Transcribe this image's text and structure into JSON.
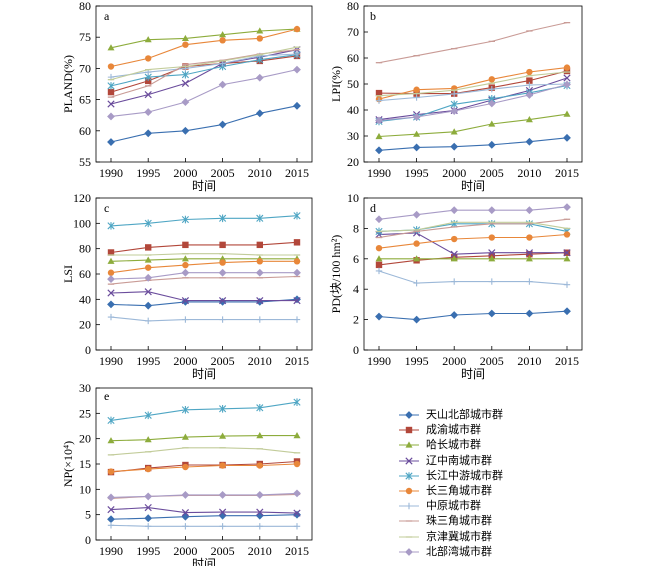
{
  "colors": [
    "#3a6fb0",
    "#b2473a",
    "#8dac3c",
    "#6a4c9c",
    "#4fa6c4",
    "#e8873a",
    "#9cb8d8",
    "#c99b96",
    "#c2cc9a",
    "#a89bc6"
  ],
  "legend": [
    "天山北部城市群",
    "成渝城市群",
    "哈长城市群",
    "辽中南城市群",
    "长江中游城市群",
    "长三角城市群",
    "中原城市群",
    "珠三角城市群",
    "京津冀城市群",
    "北部湾城市群"
  ],
  "markers": [
    "diamond",
    "square",
    "triangle",
    "x",
    "star",
    "circle",
    "plus",
    "dash",
    "dash",
    "diamond"
  ],
  "xlabel": "时间",
  "chart_data": [
    {
      "type": "line",
      "panel": "a",
      "ylabel": "PLAND(%)",
      "xlabel": "时间",
      "x": [
        1990,
        1995,
        2000,
        2005,
        2010,
        2015
      ],
      "ylim": [
        55,
        80
      ],
      "yticks": [
        55,
        60,
        65,
        70,
        75,
        80
      ],
      "series": [
        {
          "name": "天山北部城市群",
          "values": [
            58.2,
            59.6,
            60.0,
            61.0,
            62.8,
            64.0
          ]
        },
        {
          "name": "成渝城市群",
          "values": [
            66.2,
            68.0,
            70.3,
            70.8,
            71.2,
            72.0
          ]
        },
        {
          "name": "哈长城市群",
          "values": [
            73.3,
            74.6,
            74.8,
            75.4,
            76.0,
            76.3
          ]
        },
        {
          "name": "辽中南城市群",
          "values": [
            64.3,
            65.8,
            67.6,
            70.8,
            71.8,
            73.0
          ]
        },
        {
          "name": "长江中游城市群",
          "values": [
            67.2,
            68.6,
            69.0,
            70.3,
            71.4,
            72.2
          ]
        },
        {
          "name": "长三角城市群",
          "values": [
            70.3,
            71.6,
            73.8,
            74.5,
            74.8,
            76.3
          ]
        },
        {
          "name": "中原城市群",
          "values": [
            68.6,
            69.4,
            70.0,
            70.8,
            72.0,
            72.3
          ]
        },
        {
          "name": "珠三角城市群",
          "values": [
            65.4,
            67.2,
            70.6,
            71.3,
            72.3,
            73.0
          ]
        },
        {
          "name": "京津冀城市群",
          "values": [
            68.2,
            69.8,
            70.3,
            71.2,
            72.2,
            73.4
          ]
        },
        {
          "name": "北部湾城市群",
          "values": [
            62.3,
            63.0,
            64.6,
            67.4,
            68.5,
            69.8
          ]
        }
      ]
    },
    {
      "type": "line",
      "panel": "b",
      "ylabel": "LPI(%)",
      "xlabel": "时间",
      "x": [
        1990,
        1995,
        2000,
        2005,
        2010,
        2015
      ],
      "ylim": [
        20,
        80
      ],
      "yticks": [
        20,
        30,
        40,
        50,
        60,
        70,
        80
      ],
      "series": [
        {
          "name": "天山北部城市群",
          "values": [
            24.5,
            25.6,
            25.9,
            26.6,
            27.8,
            29.3
          ]
        },
        {
          "name": "成渝城市群",
          "values": [
            46.5,
            46.3,
            46.3,
            48.6,
            51.3,
            55.0
          ]
        },
        {
          "name": "哈长城市群",
          "values": [
            29.8,
            30.7,
            31.6,
            34.6,
            36.3,
            38.4
          ]
        },
        {
          "name": "辽中南城市群",
          "values": [
            36.3,
            38.2,
            39.8,
            43.8,
            47.5,
            52.3
          ]
        },
        {
          "name": "长江中游城市群",
          "values": [
            35.6,
            37.3,
            42.2,
            44.3,
            46.6,
            49.4
          ]
        },
        {
          "name": "长三角城市群",
          "values": [
            44.2,
            47.8,
            48.3,
            51.8,
            54.6,
            56.3
          ]
        },
        {
          "name": "中原城市群",
          "values": [
            43.6,
            44.8,
            46.2,
            48.0,
            49.6,
            50.0
          ]
        },
        {
          "name": "珠三角城市群",
          "values": [
            58.2,
            60.9,
            63.6,
            66.4,
            70.4,
            73.6
          ]
        },
        {
          "name": "京津冀城市群",
          "values": [
            45.5,
            46.3,
            47.6,
            50.3,
            53.2,
            54.6
          ]
        },
        {
          "name": "北部湾城市群",
          "values": [
            36.0,
            37.3,
            39.6,
            42.5,
            45.8,
            49.8
          ]
        }
      ]
    },
    {
      "type": "line",
      "panel": "c",
      "ylabel": "LSI",
      "xlabel": "时间",
      "x": [
        1990,
        1995,
        2000,
        2005,
        2010,
        2015
      ],
      "ylim": [
        0,
        120
      ],
      "yticks": [
        0,
        20,
        40,
        60,
        80,
        100,
        120
      ],
      "series": [
        {
          "name": "天山北部城市群",
          "values": [
            36,
            35,
            38,
            38,
            38,
            40
          ]
        },
        {
          "name": "成渝城市群",
          "values": [
            77,
            81,
            83,
            83,
            83,
            85
          ]
        },
        {
          "name": "哈长城市群",
          "values": [
            70,
            71,
            72,
            72,
            72,
            72
          ]
        },
        {
          "name": "辽中南城市群",
          "values": [
            45,
            46,
            39,
            39,
            39,
            39
          ]
        },
        {
          "name": "长江中游城市群",
          "values": [
            98,
            100,
            103,
            104,
            104,
            106
          ]
        },
        {
          "name": "长三角城市群",
          "values": [
            61,
            65,
            67,
            69,
            70,
            70
          ]
        },
        {
          "name": "中原城市群",
          "values": [
            26,
            23,
            24,
            24,
            24,
            24
          ]
        },
        {
          "name": "珠三角城市群",
          "values": [
            52,
            55,
            57,
            57,
            57,
            58
          ]
        },
        {
          "name": "京津冀城市群",
          "values": [
            75,
            75,
            76,
            76,
            75,
            75
          ]
        },
        {
          "name": "北部湾城市群",
          "values": [
            56,
            57,
            61,
            61,
            61,
            61
          ]
        }
      ]
    },
    {
      "type": "line",
      "panel": "d",
      "ylabel": "PD(块/100 hm²)",
      "xlabel": "时间",
      "x": [
        1990,
        1995,
        2000,
        2005,
        2010,
        2015
      ],
      "ylim": [
        0,
        10
      ],
      "yticks": [
        0,
        2,
        4,
        6,
        8,
        10
      ],
      "series": [
        {
          "name": "天山北部城市群",
          "values": [
            2.2,
            2.0,
            2.3,
            2.4,
            2.4,
            2.55
          ]
        },
        {
          "name": "成渝城市群",
          "values": [
            5.6,
            5.9,
            6.1,
            6.2,
            6.3,
            6.4
          ]
        },
        {
          "name": "哈长城市群",
          "values": [
            6.0,
            6.0,
            6.0,
            6.0,
            6.0,
            6.0
          ]
        },
        {
          "name": "辽中南城市群",
          "values": [
            7.6,
            7.7,
            6.3,
            6.4,
            6.4,
            6.4
          ]
        },
        {
          "name": "长江中游城市群",
          "values": [
            7.8,
            7.9,
            8.3,
            8.3,
            8.3,
            7.8
          ]
        },
        {
          "name": "长三角城市群",
          "values": [
            6.7,
            7.0,
            7.3,
            7.4,
            7.4,
            7.6
          ]
        },
        {
          "name": "中原城市群",
          "values": [
            5.2,
            4.4,
            4.5,
            4.5,
            4.5,
            4.3
          ]
        },
        {
          "name": "珠三角城市群",
          "values": [
            7.4,
            7.8,
            8.1,
            8.3,
            8.3,
            8.6
          ]
        },
        {
          "name": "京津冀城市群",
          "values": [
            7.8,
            7.9,
            8.4,
            8.4,
            8.4,
            8.0
          ]
        },
        {
          "name": "北部湾城市群",
          "values": [
            8.6,
            8.9,
            9.2,
            9.2,
            9.2,
            9.4
          ]
        }
      ]
    },
    {
      "type": "line",
      "panel": "e",
      "ylabel": "NP(×10⁴)",
      "xlabel": "时间",
      "x": [
        1990,
        1995,
        2000,
        2005,
        2010,
        2015
      ],
      "ylim": [
        0,
        30
      ],
      "yticks": [
        0,
        5,
        10,
        15,
        20,
        25,
        30
      ],
      "series": [
        {
          "name": "天山北部城市群",
          "values": [
            4.1,
            4.3,
            4.6,
            4.8,
            4.8,
            5.0
          ]
        },
        {
          "name": "成渝城市群",
          "values": [
            13.4,
            14.2,
            14.8,
            14.8,
            15.0,
            15.5
          ]
        },
        {
          "name": "哈长城市群",
          "values": [
            19.6,
            19.8,
            20.3,
            20.5,
            20.6,
            20.6
          ]
        },
        {
          "name": "辽中南城市群",
          "values": [
            6.0,
            6.4,
            5.4,
            5.5,
            5.5,
            5.3
          ]
        },
        {
          "name": "长江中游城市群",
          "values": [
            23.6,
            24.6,
            25.7,
            25.9,
            26.1,
            27.2
          ]
        },
        {
          "name": "长三角城市群",
          "values": [
            13.5,
            14.0,
            14.4,
            14.7,
            14.7,
            15.0
          ]
        },
        {
          "name": "中原城市群",
          "values": [
            2.9,
            2.7,
            2.7,
            2.7,
            2.7,
            2.7
          ]
        },
        {
          "name": "珠三角城市群",
          "values": [
            8.2,
            8.6,
            8.8,
            8.8,
            8.8,
            9.0
          ]
        },
        {
          "name": "京津冀城市群",
          "values": [
            16.8,
            17.4,
            18.2,
            18.2,
            18.0,
            17.2
          ]
        },
        {
          "name": "北部湾城市群",
          "values": [
            8.4,
            8.6,
            8.9,
            8.9,
            8.9,
            9.2
          ]
        }
      ]
    }
  ]
}
